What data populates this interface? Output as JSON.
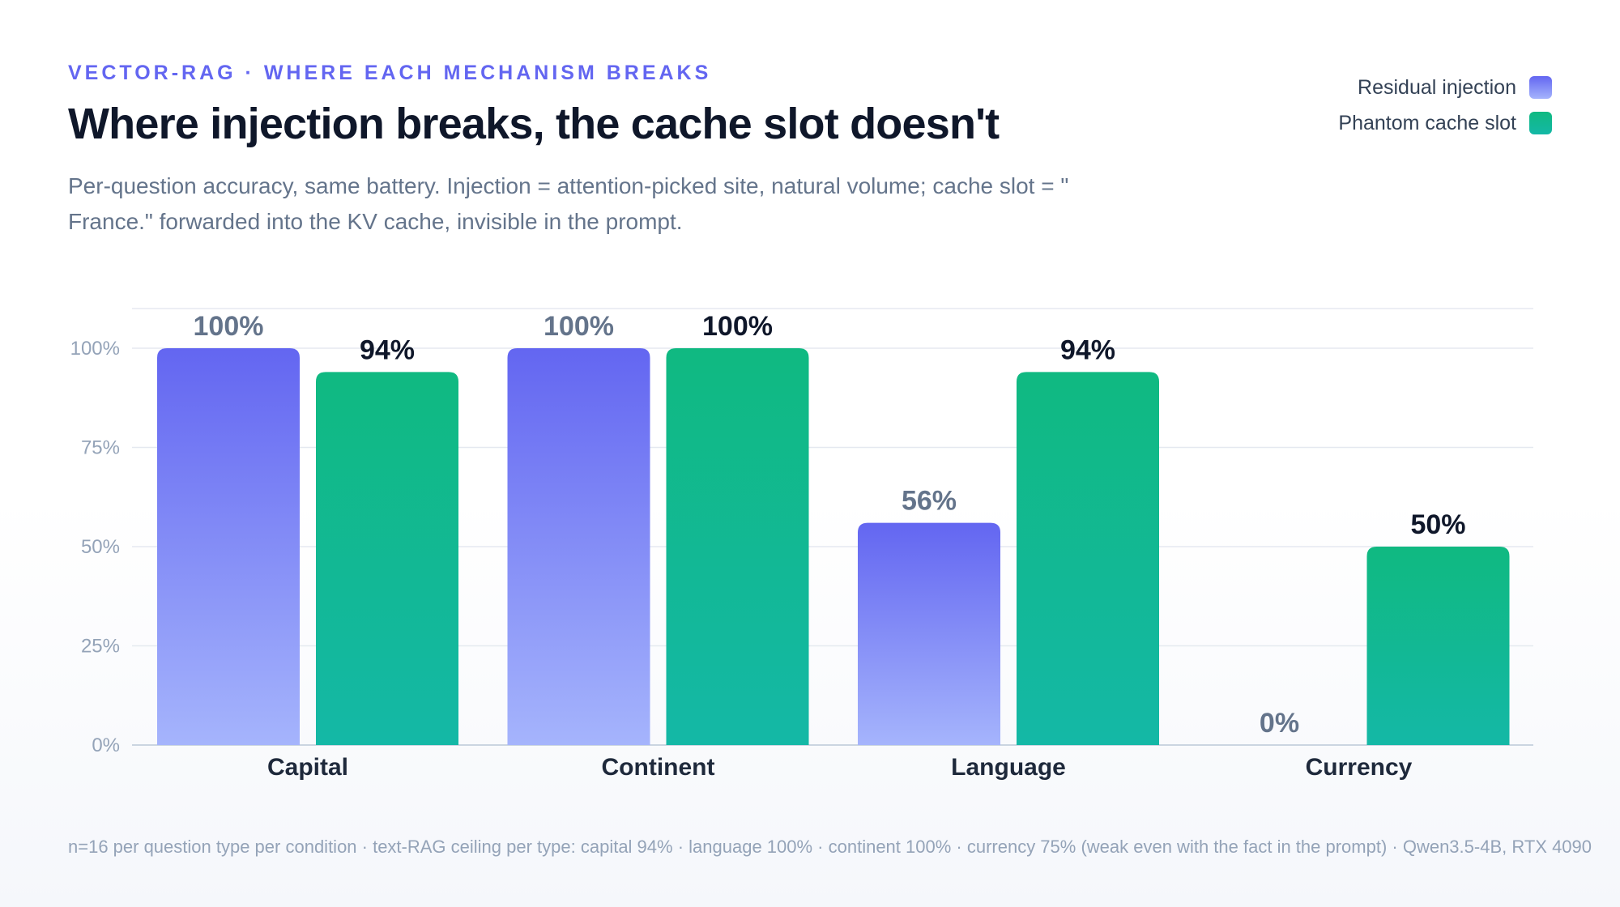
{
  "header": {
    "eyebrow": "VECTOR-RAG · WHERE EACH MECHANISM BREAKS",
    "title": "Where injection breaks, the cache slot doesn't",
    "subtitle": "Per-question accuracy, same battery. Injection = attention-picked site, natural volume; cache slot = \" France.\" forwarded into the KV cache, invisible in the prompt."
  },
  "legend": [
    {
      "label": "Residual injection",
      "color": "#818cf8"
    },
    {
      "label": "Phantom cache slot",
      "color": "#10b981"
    }
  ],
  "chart_data": {
    "type": "bar",
    "categories": [
      "Capital",
      "Continent",
      "Language",
      "Currency"
    ],
    "series": [
      {
        "name": "Residual injection",
        "values": [
          100,
          100,
          56,
          0
        ],
        "color_top": "#6366f1",
        "color_bottom": "#a5b4fc",
        "label_color": "#64748b"
      },
      {
        "name": "Phantom cache slot",
        "values": [
          94,
          100,
          94,
          50
        ],
        "color_top": "#10b981",
        "color_bottom": "#14b8a6",
        "label_color": "#0f172a"
      }
    ],
    "value_labels": [
      [
        "100%",
        "100%",
        "56%",
        "0%"
      ],
      [
        "94%",
        "100%",
        "94%",
        "50%"
      ]
    ],
    "ylim": [
      0,
      110
    ],
    "yticks": [
      0,
      25,
      50,
      75,
      100
    ],
    "ytick_labels": [
      "0%",
      "25%",
      "50%",
      "75%",
      "100%"
    ],
    "xlabel": "",
    "ylabel": "",
    "grid": true,
    "legend_position": "top-right"
  },
  "footnote": "n=16 per question type per condition · text-RAG ceiling per type: capital 94% · language 100% · continent 100% · currency 75% (weak even with the fact in the prompt) · Qwen3.5-4B, RTX 4090"
}
